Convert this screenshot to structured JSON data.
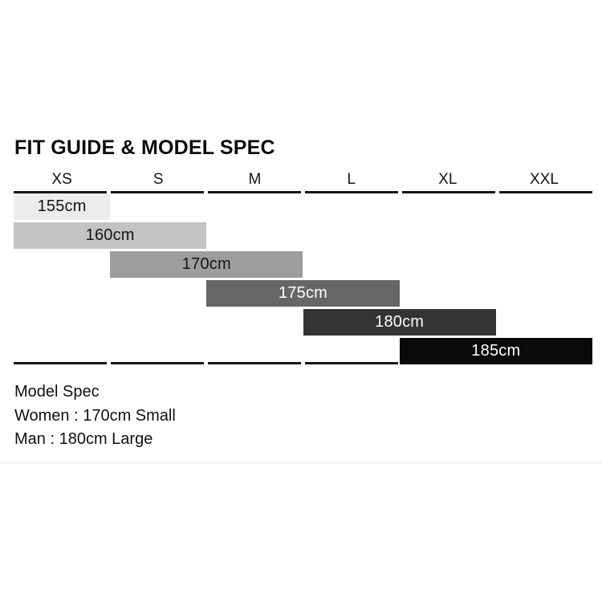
{
  "title": "FIT GUIDE & MODEL SPEC",
  "chart_data": {
    "type": "bar",
    "subtype": "staircase-size-fit-guide",
    "title": "FIT GUIDE & MODEL SPEC",
    "categories": [
      "XS",
      "S",
      "M",
      "L",
      "XL",
      "XXL"
    ],
    "bars": [
      {
        "label": "155cm",
        "sizes": [
          "XS"
        ],
        "col_start": 0,
        "col_span": 1,
        "color": "#ececec",
        "text_color": "#141414"
      },
      {
        "label": "160cm",
        "sizes": [
          "XS",
          "S"
        ],
        "col_start": 0,
        "col_span": 2,
        "color": "#c3c3c3",
        "text_color": "#141414"
      },
      {
        "label": "170cm",
        "sizes": [
          "S",
          "M"
        ],
        "col_start": 1,
        "col_span": 2,
        "color": "#9d9d9d",
        "text_color": "#141414"
      },
      {
        "label": "175cm",
        "sizes": [
          "M",
          "L"
        ],
        "col_start": 2,
        "col_span": 2,
        "color": "#666666",
        "text_color": "#ffffff"
      },
      {
        "label": "180cm",
        "sizes": [
          "L",
          "XL"
        ],
        "col_start": 3,
        "col_span": 2,
        "color": "#343434",
        "text_color": "#ffffff"
      },
      {
        "label": "185cm",
        "sizes": [
          "XL",
          "XXL"
        ],
        "col_start": 4,
        "col_span": 2,
        "color": "#0a0a0a",
        "text_color": "#ffffff"
      }
    ],
    "rule_color": "#171717",
    "legend": "none",
    "grid": "off"
  },
  "model_spec": {
    "heading": "Model Spec",
    "lines": [
      "Women : 170cm Small",
      "Man : 180cm Large"
    ]
  }
}
